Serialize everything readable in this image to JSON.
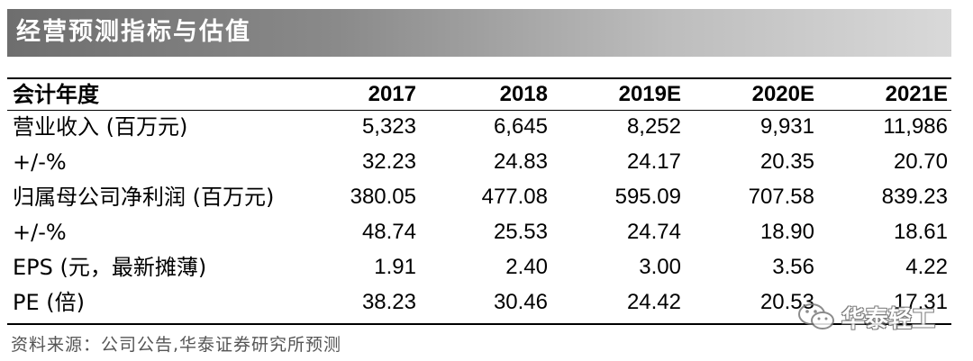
{
  "title": "经营预测指标与估值",
  "table": {
    "header": [
      "会计年度",
      "2017",
      "2018",
      "2019E",
      "2020E",
      "2021E"
    ],
    "rows": [
      [
        "营业收入 (百万元)",
        "5,323",
        "6,645",
        "8,252",
        "9,931",
        "11,986"
      ],
      [
        "+/-%",
        "32.23",
        "24.83",
        "24.17",
        "20.35",
        "20.70"
      ],
      [
        "归属母公司净利润 (百万元)",
        "380.05",
        "477.08",
        "595.09",
        "707.58",
        "839.23"
      ],
      [
        "+/-%",
        "48.74",
        "25.53",
        "24.74",
        "18.90",
        "18.61"
      ],
      [
        "EPS (元，最新摊薄)",
        "1.91",
        "2.40",
        "3.00",
        "3.56",
        "4.22"
      ],
      [
        "PE (倍)",
        "38.23",
        "30.46",
        "24.42",
        "20.53",
        "17.31"
      ]
    ]
  },
  "source": "资料来源：公司公告,华泰证券研究所预测",
  "watermark": {
    "text": "华泰轻工",
    "icon": "wechat-icon"
  }
}
